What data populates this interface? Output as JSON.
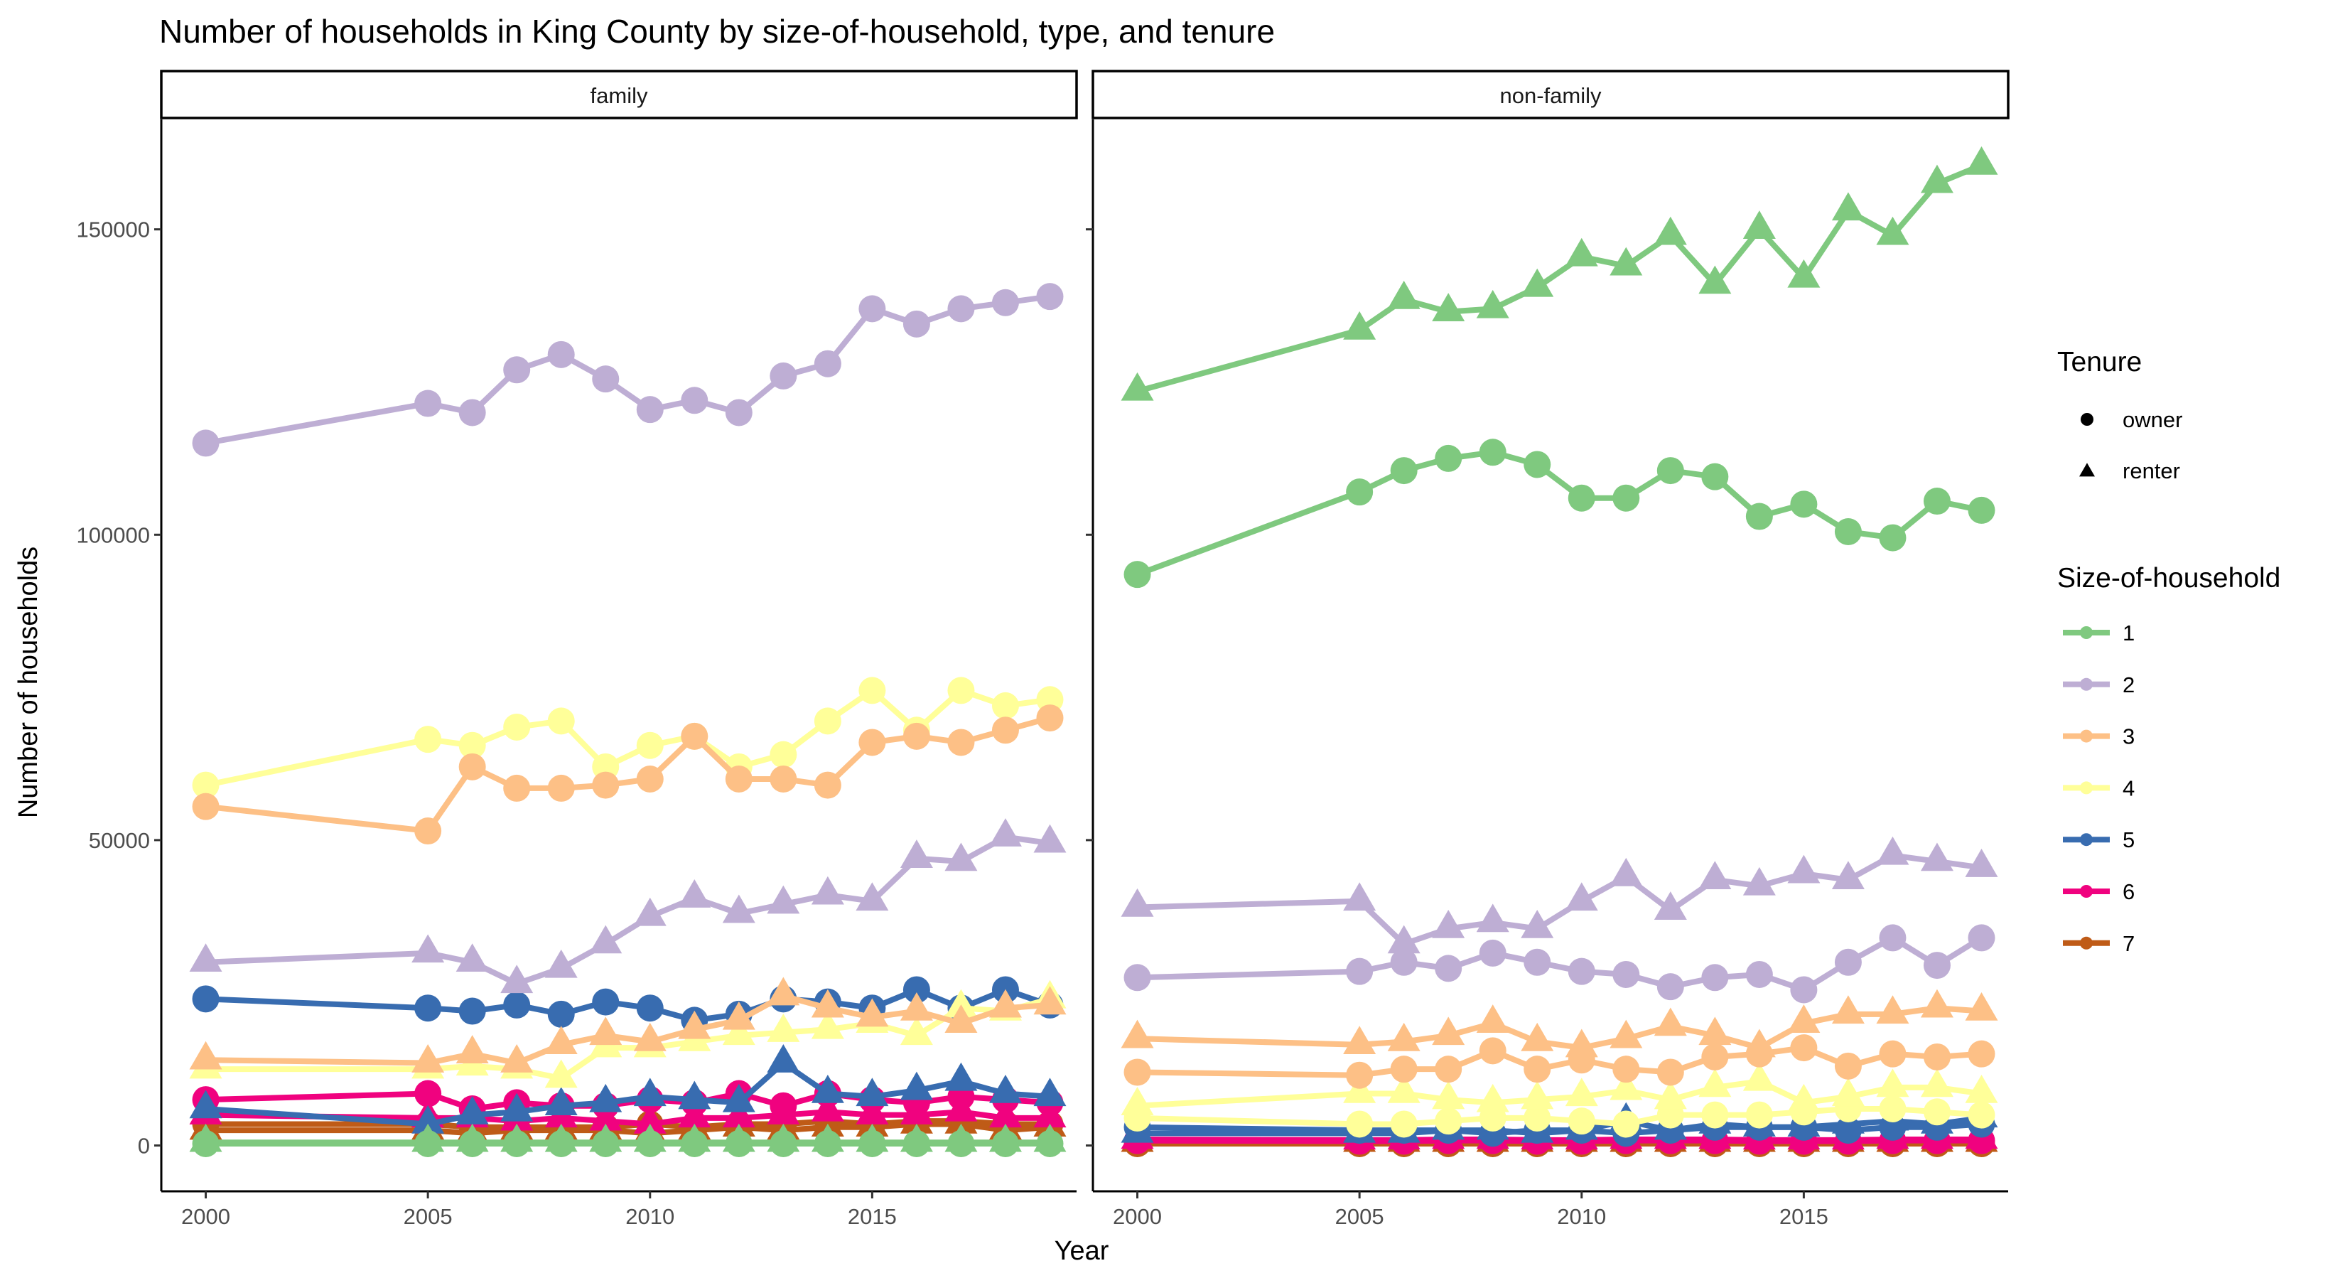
{
  "chart_data": {
    "type": "line",
    "title": "Number of households in King County by size-of-household, type, and tenure",
    "xlabel": "Year",
    "ylabel": "Number of households",
    "xlim": [
      1999,
      2019.6
    ],
    "ylim": [
      -7500,
      168000
    ],
    "x_ticks": [
      2000,
      2005,
      2010,
      2015
    ],
    "y_ticks": [
      0,
      50000,
      100000,
      150000
    ],
    "x": [
      2000,
      2005,
      2006,
      2007,
      2008,
      2009,
      2010,
      2011,
      2012,
      2013,
      2014,
      2015,
      2016,
      2017,
      2018,
      2019
    ],
    "panels": [
      "family",
      "non-family"
    ],
    "legend": {
      "position": "right",
      "tenure_title": "Tenure",
      "tenure": [
        "owner",
        "renter"
      ],
      "size_title": "Size-of-household",
      "sizes": [
        "1",
        "2",
        "3",
        "4",
        "5",
        "6",
        "7"
      ]
    },
    "colors": {
      "1": "#7FC97F",
      "2": "#BEAED4",
      "3": "#FDC086",
      "4": "#FFFF99",
      "5": "#386CB0",
      "6": "#F0027F",
      "7": "#BF5B17"
    },
    "series": [
      {
        "panel": "family",
        "size": "1",
        "tenure": "owner",
        "values": [
          300,
          300,
          300,
          300,
          300,
          300,
          300,
          300,
          300,
          300,
          300,
          300,
          300,
          300,
          300,
          300
        ]
      },
      {
        "panel": "family",
        "size": "1",
        "tenure": "renter",
        "values": [
          500,
          500,
          500,
          500,
          500,
          500,
          500,
          500,
          500,
          500,
          500,
          500,
          500,
          500,
          500,
          500
        ]
      },
      {
        "panel": "family",
        "size": "2",
        "tenure": "owner",
        "values": [
          115000,
          121500,
          120000,
          127000,
          129500,
          125500,
          120500,
          122000,
          120000,
          126000,
          128000,
          137000,
          134500,
          137000,
          138000,
          139000
        ]
      },
      {
        "panel": "family",
        "size": "2",
        "tenure": "renter",
        "values": [
          30000,
          31500,
          30000,
          26500,
          29000,
          33000,
          37500,
          40500,
          38000,
          39500,
          41000,
          40000,
          47000,
          46500,
          50500,
          49500
        ]
      },
      {
        "panel": "family",
        "size": "3",
        "tenure": "owner",
        "values": [
          55500,
          51500,
          62000,
          58500,
          58500,
          59000,
          60000,
          67000,
          60000,
          60000,
          59000,
          66000,
          67000,
          66000,
          68000,
          70000
        ]
      },
      {
        "panel": "family",
        "size": "3",
        "tenure": "renter",
        "values": [
          14000,
          13500,
          15000,
          13500,
          16500,
          18000,
          17000,
          19000,
          20500,
          24500,
          22500,
          21000,
          22000,
          20000,
          22500,
          23000
        ]
      },
      {
        "panel": "family",
        "size": "4",
        "tenure": "owner",
        "values": [
          59000,
          66500,
          65500,
          68500,
          69500,
          62000,
          65500,
          67000,
          62000,
          64000,
          69500,
          74500,
          68000,
          74500,
          72000,
          73000
        ]
      },
      {
        "panel": "family",
        "size": "4",
        "tenure": "renter",
        "values": [
          12500,
          12500,
          13000,
          12500,
          11000,
          16000,
          16000,
          17000,
          18000,
          18500,
          19000,
          20000,
          18000,
          22500,
          22000,
          24000
        ]
      },
      {
        "panel": "family",
        "size": "5",
        "tenure": "owner",
        "values": [
          24000,
          22500,
          22000,
          23000,
          21500,
          23500,
          22500,
          20500,
          21500,
          24000,
          23500,
          22500,
          25500,
          22500,
          25500,
          23000
        ]
      },
      {
        "panel": "family",
        "size": "5",
        "tenure": "renter",
        "values": [
          6000,
          3500,
          5000,
          5500,
          6500,
          7000,
          8000,
          7500,
          7000,
          13500,
          8500,
          8000,
          9000,
          10500,
          8500,
          8000
        ]
      },
      {
        "panel": "family",
        "size": "6",
        "tenure": "owner",
        "values": [
          7500,
          8500,
          6000,
          7000,
          6500,
          6500,
          7500,
          7000,
          8500,
          6500,
          8500,
          7500,
          7000,
          8000,
          7500,
          7000
        ]
      },
      {
        "panel": "family",
        "size": "6",
        "tenure": "renter",
        "values": [
          5000,
          4500,
          4500,
          4000,
          4500,
          4000,
          3500,
          4500,
          4500,
          5000,
          5500,
          5000,
          5000,
          5500,
          4500,
          4500
        ]
      },
      {
        "panel": "family",
        "size": "7",
        "tenure": "owner",
        "values": [
          3500,
          3500,
          3000,
          3000,
          3000,
          3000,
          3500,
          3000,
          3500,
          3500,
          4000,
          3500,
          4000,
          4000,
          3500,
          3500
        ]
      },
      {
        "panel": "family",
        "size": "7",
        "tenure": "renter",
        "values": [
          2500,
          2500,
          2000,
          2500,
          2500,
          2500,
          2000,
          2500,
          3000,
          2500,
          3000,
          3000,
          3500,
          3500,
          2500,
          3000
        ]
      },
      {
        "panel": "non-family",
        "size": "1",
        "tenure": "owner",
        "values": [
          93500,
          107000,
          110500,
          112500,
          113500,
          111500,
          106000,
          106000,
          110500,
          109500,
          103000,
          105000,
          100500,
          99500,
          105500,
          104000
        ]
      },
      {
        "panel": "non-family",
        "size": "1",
        "tenure": "renter",
        "values": [
          123500,
          133500,
          138500,
          136500,
          137000,
          140500,
          145500,
          144000,
          149000,
          141000,
          150000,
          142000,
          153000,
          149000,
          157500,
          160500
        ]
      },
      {
        "panel": "non-family",
        "size": "2",
        "tenure": "owner",
        "values": [
          27500,
          28500,
          30000,
          29000,
          31500,
          30000,
          28500,
          28000,
          26000,
          27500,
          28000,
          25500,
          30000,
          34000,
          29500,
          34000
        ]
      },
      {
        "panel": "non-family",
        "size": "2",
        "tenure": "renter",
        "values": [
          39000,
          40000,
          33000,
          35500,
          36500,
          35500,
          40000,
          44000,
          38500,
          43500,
          42500,
          44500,
          43500,
          47500,
          46500,
          45500
        ]
      },
      {
        "panel": "non-family",
        "size": "3",
        "tenure": "owner",
        "values": [
          12000,
          11500,
          12500,
          12500,
          15500,
          12500,
          14000,
          12500,
          12000,
          14500,
          15000,
          16000,
          13000,
          15000,
          14500,
          15000
        ]
      },
      {
        "panel": "non-family",
        "size": "3",
        "tenure": "renter",
        "values": [
          17500,
          16500,
          17000,
          18000,
          20000,
          17000,
          16000,
          17500,
          19500,
          18000,
          16000,
          20000,
          21500,
          21500,
          22500,
          22000
        ]
      },
      {
        "panel": "non-family",
        "size": "4",
        "tenure": "owner",
        "values": [
          4500,
          3500,
          3500,
          4000,
          4500,
          4500,
          4000,
          3500,
          5000,
          5000,
          5000,
          5500,
          6000,
          6000,
          5500,
          5000
        ]
      },
      {
        "panel": "non-family",
        "size": "4",
        "tenure": "renter",
        "values": [
          6500,
          8500,
          8500,
          7500,
          7000,
          7500,
          8000,
          9000,
          7500,
          9500,
          10500,
          7000,
          8000,
          9500,
          9500,
          8500
        ]
      },
      {
        "panel": "non-family",
        "size": "5",
        "tenure": "owner",
        "values": [
          3000,
          2500,
          2500,
          2500,
          2000,
          2500,
          2500,
          2000,
          2500,
          3000,
          3000,
          3000,
          2500,
          3000,
          3000,
          3500
        ]
      },
      {
        "panel": "non-family",
        "size": "5",
        "tenure": "renter",
        "values": [
          2000,
          2000,
          2000,
          2500,
          2500,
          2000,
          2500,
          4000,
          2500,
          3500,
          3000,
          3000,
          3500,
          4000,
          3500,
          4500
        ]
      },
      {
        "panel": "non-family",
        "size": "6",
        "tenure": "owner",
        "values": [
          800,
          700,
          700,
          800,
          800,
          700,
          700,
          800,
          800,
          800,
          700,
          700,
          700,
          800,
          800,
          800
        ]
      },
      {
        "panel": "non-family",
        "size": "6",
        "tenure": "renter",
        "values": [
          1000,
          900,
          900,
          1000,
          1000,
          900,
          900,
          1000,
          1000,
          1000,
          900,
          900,
          900,
          1000,
          1000,
          1000
        ]
      },
      {
        "panel": "non-family",
        "size": "7",
        "tenure": "owner",
        "values": [
          300,
          300,
          300,
          300,
          300,
          300,
          300,
          300,
          300,
          300,
          300,
          300,
          300,
          300,
          300,
          300
        ]
      },
      {
        "panel": "non-family",
        "size": "7",
        "tenure": "renter",
        "values": [
          500,
          500,
          500,
          500,
          500,
          500,
          500,
          500,
          500,
          500,
          500,
          500,
          500,
          500,
          500,
          500
        ]
      }
    ]
  }
}
